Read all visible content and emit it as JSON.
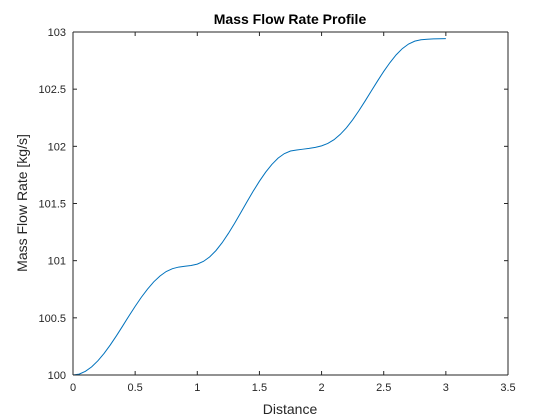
{
  "chart_data": {
    "type": "line",
    "title": "Mass Flow Rate Profile",
    "xlabel": "Distance",
    "ylabel": "Mass Flow Rate [kg/s]",
    "xlim": [
      0,
      3.5
    ],
    "ylim": [
      100,
      103
    ],
    "xticks": [
      "0",
      "0.5",
      "1",
      "1.5",
      "2",
      "2.5",
      "3",
      "3.5"
    ],
    "yticks": [
      "100",
      "100.5",
      "101",
      "101.5",
      "102",
      "102.5",
      "103"
    ],
    "grid": false,
    "legend": "none",
    "series": [
      {
        "color": "#0072BD",
        "x": [
          0,
          0.05,
          0.1,
          0.15,
          0.2,
          0.25,
          0.3,
          0.35,
          0.4,
          0.45,
          0.5,
          0.55,
          0.6,
          0.65,
          0.7,
          0.75,
          0.8,
          0.85,
          0.9,
          0.95,
          1.0,
          1.05,
          1.1,
          1.15,
          1.2,
          1.25,
          1.3,
          1.35,
          1.4,
          1.45,
          1.5,
          1.55,
          1.6,
          1.65,
          1.7,
          1.75,
          1.8,
          1.85,
          1.9,
          1.95,
          2.0,
          2.05,
          2.1,
          2.15,
          2.2,
          2.25,
          2.3,
          2.35,
          2.4,
          2.45,
          2.5,
          2.55,
          2.6,
          2.65,
          2.7,
          2.75,
          2.8,
          2.85,
          2.9,
          2.95,
          3.0
        ],
        "y": [
          100.0,
          100.008,
          100.032,
          100.071,
          100.124,
          100.189,
          100.263,
          100.344,
          100.429,
          100.516,
          100.6,
          100.68,
          100.752,
          100.815,
          100.866,
          100.905,
          100.93,
          100.944,
          100.951,
          100.958,
          100.97,
          100.994,
          101.033,
          101.088,
          101.157,
          101.238,
          101.326,
          101.42,
          101.515,
          101.608,
          101.695,
          101.774,
          101.842,
          101.897,
          101.936,
          101.959,
          101.968,
          101.975,
          101.982,
          101.991,
          102.004,
          102.025,
          102.058,
          102.104,
          102.162,
          102.232,
          102.311,
          102.396,
          102.484,
          102.571,
          102.655,
          102.732,
          102.8,
          102.855,
          102.895,
          102.92,
          102.932,
          102.937,
          102.94,
          102.941,
          102.942
        ]
      }
    ]
  }
}
